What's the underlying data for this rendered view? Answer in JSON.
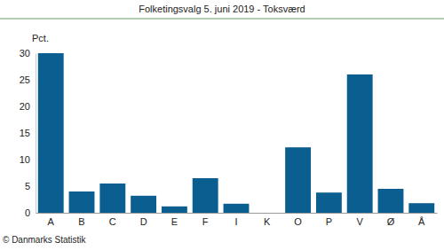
{
  "chart_data": {
    "type": "bar",
    "title": "Folketingsvalg 5. juni 2019 - Toksværd",
    "y_label": "Pct.",
    "annotations": [
      "© Danmarks Statistik"
    ],
    "categories": [
      "A",
      "B",
      "C",
      "D",
      "E",
      "F",
      "I",
      "K",
      "O",
      "P",
      "V",
      "Ø",
      "Å"
    ],
    "values": [
      30.0,
      4.0,
      5.5,
      3.2,
      1.2,
      6.5,
      1.7,
      0,
      12.3,
      3.8,
      26.0,
      4.5,
      1.8
    ],
    "color": "#0b5e90",
    "ylim": [
      0,
      30
    ],
    "yticks": [
      0,
      5,
      10,
      15,
      20,
      25,
      30
    ],
    "grid": false
  }
}
